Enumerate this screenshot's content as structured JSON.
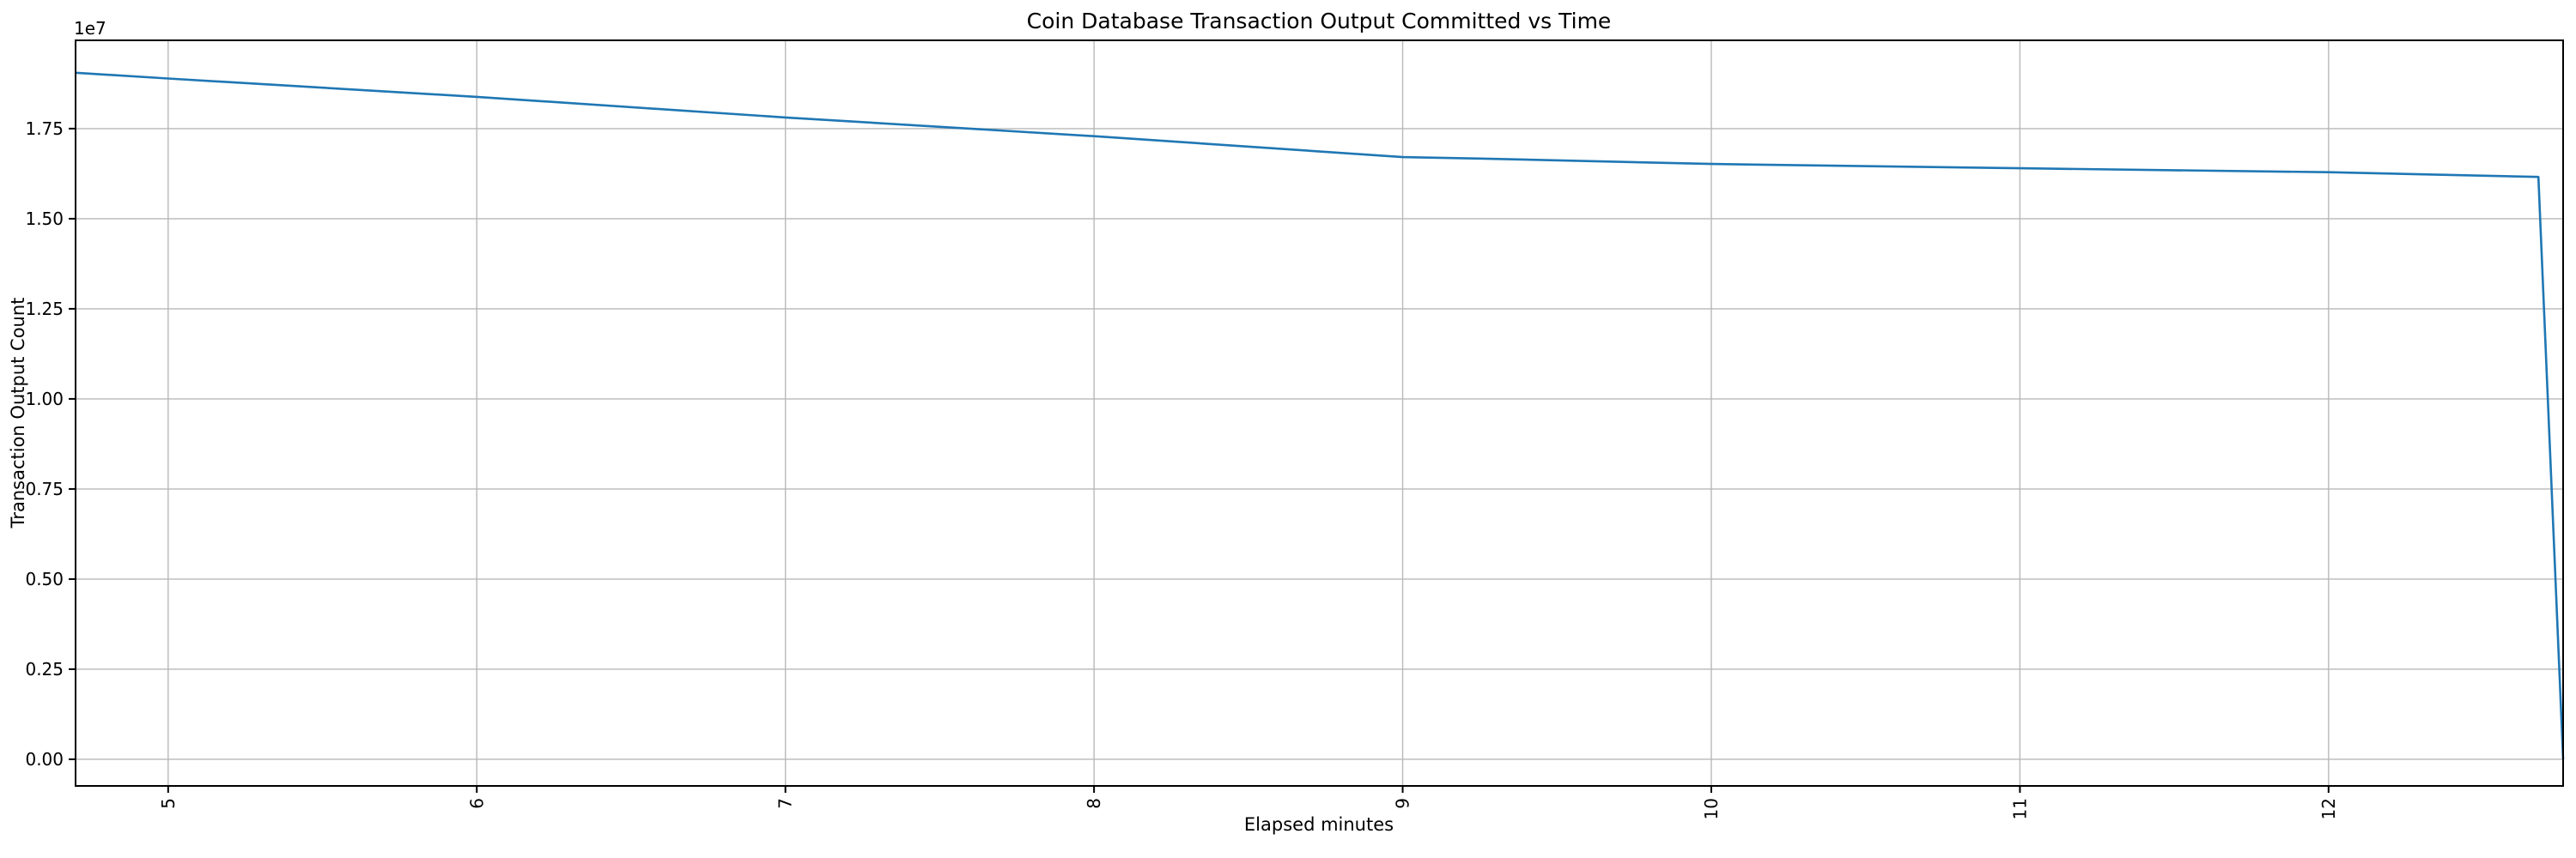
{
  "chart_data": {
    "type": "line",
    "title": "Coin Database Transaction Output Committed vs Time",
    "xlabel": "Elapsed minutes",
    "ylabel": "Transaction Output Count",
    "y_offset_label": "1e7",
    "grid": true,
    "legend": "none",
    "background_color": "#ffffff",
    "line_color": "#1f77b4",
    "grid_color": "#b8b8b8",
    "spine_color": "#000000",
    "xlim": [
      4.7,
      12.76
    ],
    "ylim": [
      -740000,
      19950000
    ],
    "x_ticks": [
      5,
      6,
      7,
      8,
      9,
      10,
      11,
      12
    ],
    "x_tick_labels": [
      "5",
      "6",
      "7",
      "8",
      "9",
      "10",
      "11",
      "12"
    ],
    "x_tick_rotation_deg": 90,
    "y_ticks": [
      0,
      2500000,
      5000000,
      7500000,
      10000000,
      12500000,
      15000000,
      17500000
    ],
    "y_tick_labels": [
      "0.00",
      "0.25",
      "0.50",
      "0.75",
      "1.00",
      "1.25",
      "1.50",
      "1.75"
    ],
    "series": [
      {
        "name": "transaction-output-count",
        "points": [
          [
            4.7,
            19050000
          ],
          [
            5.0,
            18890000
          ],
          [
            6.0,
            18380000
          ],
          [
            7.0,
            17810000
          ],
          [
            8.0,
            17290000
          ],
          [
            9.0,
            16710000
          ],
          [
            9.25,
            16670000
          ],
          [
            10.0,
            16520000
          ],
          [
            11.0,
            16400000
          ],
          [
            12.0,
            16290000
          ],
          [
            12.68,
            16160000
          ],
          [
            12.76,
            0
          ]
        ]
      }
    ]
  }
}
